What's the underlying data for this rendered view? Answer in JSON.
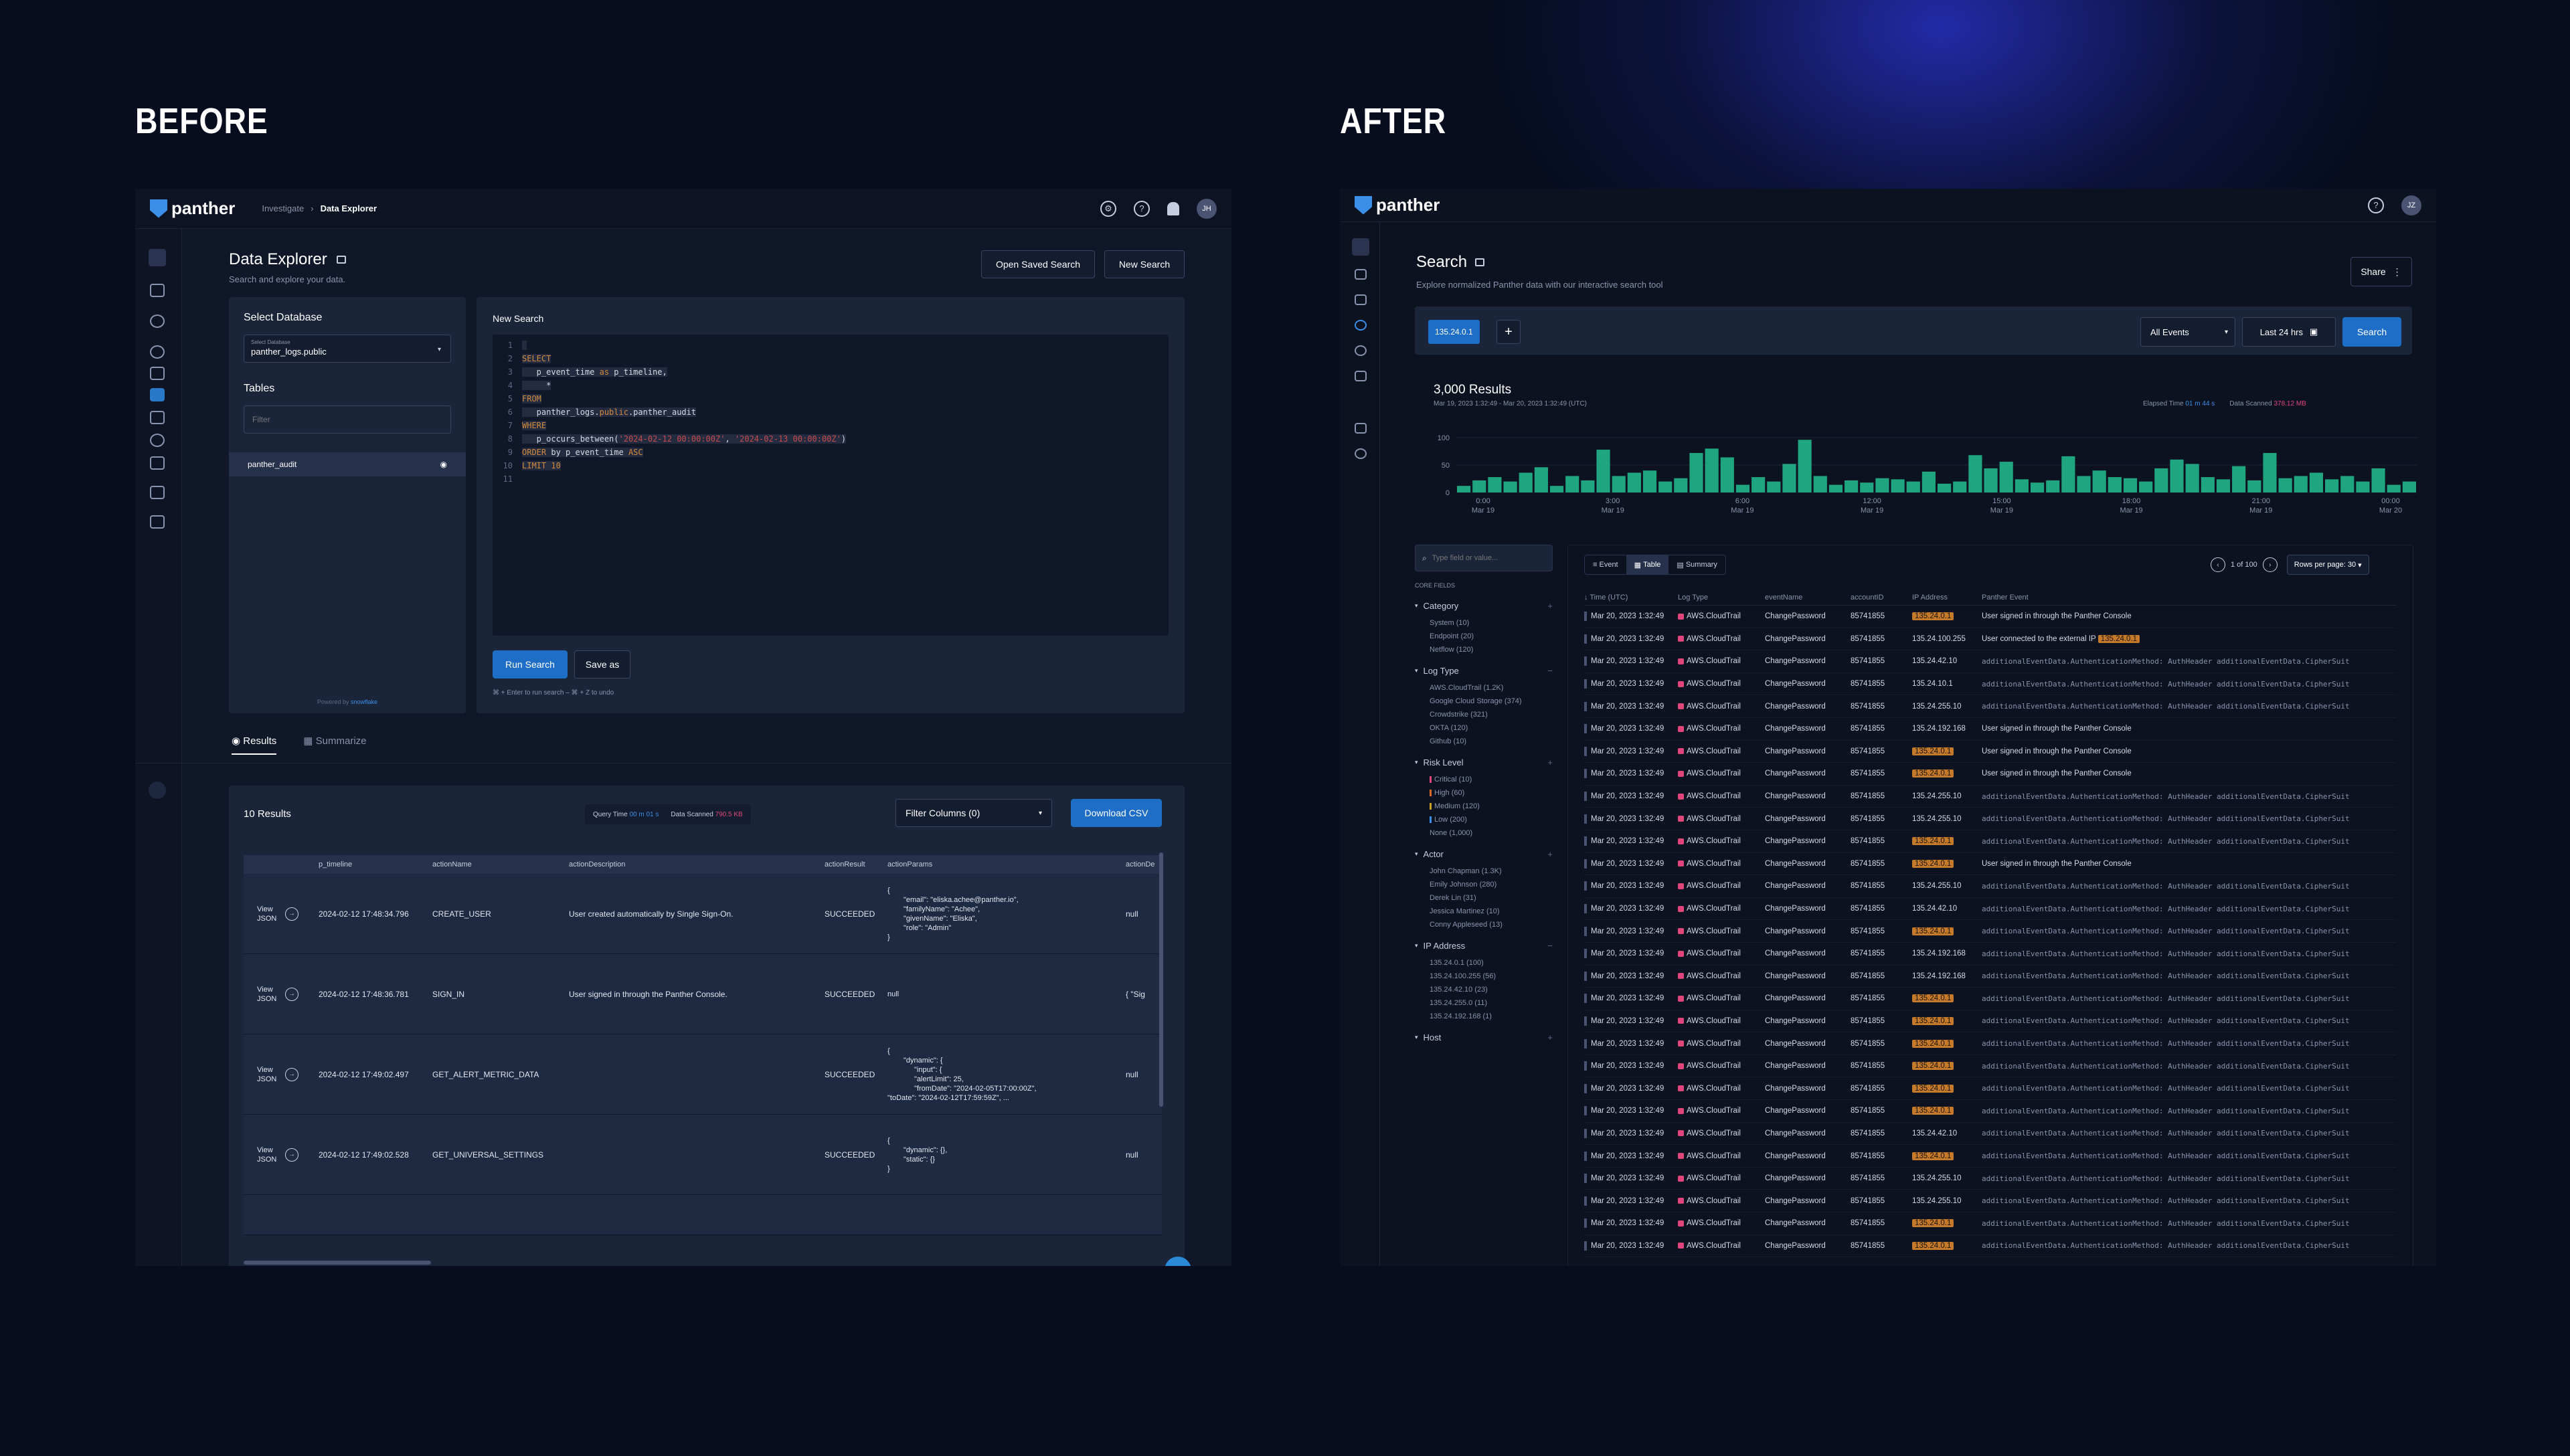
{
  "labels": {
    "before": "BEFORE",
    "after": "AFTER"
  },
  "before": {
    "brand": "panther",
    "breadcrumb": [
      "Investigate",
      "›",
      "Data Explorer"
    ],
    "avatar": "JH",
    "title": "Data Explorer",
    "subtitle": "Search and explore your data.",
    "open_saved": "Open Saved Search",
    "new_search": "New Search",
    "select_db_label": "Select Database",
    "db_field_label": "Select Database",
    "db_value": "panther_logs.public",
    "tables_label": "Tables",
    "filter_placeholder": "Filter",
    "table_item": "panther_audit",
    "powered_by": "Powered by",
    "snowflake": "snowflake",
    "editor_label": "New Search",
    "line_numbers": [
      "1",
      "2",
      "3",
      "4",
      "5",
      "6",
      "7",
      "8",
      "9",
      "10",
      "11"
    ],
    "run_search": "Run Search",
    "save_as": "Save as",
    "shortcut_hint": "⌘ + Enter to run search – ⌘ + Z to undo",
    "tab_results": "Results",
    "tab_summarize": "Summarize",
    "results_count": "10 Results",
    "query_time_label": "Query Time",
    "query_time_value": "00 m 01 s",
    "data_scanned_label": "Data Scanned",
    "data_scanned_value": "790.5 KB",
    "filter_columns": "Filter Columns (0)",
    "download_csv": "Download CSV",
    "columns": [
      "p_timeline",
      "actionName",
      "actionDescription",
      "actionResult",
      "actionParams",
      "actionDe"
    ],
    "view_json": "View JSON",
    "rows": [
      {
        "time": "2024-02-12 17:48:34.796",
        "name": "CREATE_USER",
        "desc": "User created automatically by Single Sign-On.",
        "result": "SUCCEEDED",
        "params": [
          "{",
          "\"email\": \"eliska.achee@panther.io\",",
          "\"familyName\": \"Achee\",",
          "\"givenName\": \"Eliska\",",
          "\"role\": \"Admin\"",
          "}"
        ],
        "de": "null"
      },
      {
        "time": "2024-02-12 17:48:36.781",
        "name": "SIGN_IN",
        "desc": "User signed in through the Panther Console.",
        "result": "SUCCEEDED",
        "params": [
          "null"
        ],
        "de": "{ \"Sig"
      },
      {
        "time": "2024-02-12 17:49:02.497",
        "name": "GET_ALERT_METRIC_DATA",
        "desc": "",
        "result": "SUCCEEDED",
        "params": [
          "{",
          "\"dynamic\": {",
          "\"input\": {",
          "\"alertLimit\": 25,",
          "\"fromDate\": \"2024-02-05T17:00:00Z\",",
          "\"toDate\": \"2024-02-12T17:59:59Z\", ..."
        ],
        "de": "null"
      },
      {
        "time": "2024-02-12 17:49:02.528",
        "name": "GET_UNIVERSAL_SETTINGS",
        "desc": "",
        "result": "SUCCEEDED",
        "params": [
          "{",
          "\"dynamic\": {},",
          "\"static\": {}",
          "}"
        ],
        "de": "null"
      }
    ]
  },
  "after": {
    "brand": "panther",
    "avatar": "JZ",
    "title": "Search",
    "subtitle": "Explore normalized Panther data with our interactive search tool",
    "share": "Share",
    "query_chip": "135.24.0.1",
    "all_events": "All Events",
    "time_range": "Last 24 hrs",
    "search_button": "Search",
    "results_title": "3,000 Results",
    "date_range": "Mar 19, 2023 1:32:49 - Mar 20, 2023 1:32:49 (UTC)",
    "elapsed_label": "Elapsed Time",
    "elapsed_value": "01 m 44 s",
    "scanned_label": "Data Scanned",
    "scanned_value": "378.12 MB",
    "y_ticks": [
      "100",
      "50",
      "0"
    ],
    "x_ticks": [
      {
        "t": "0:00",
        "d": "Mar 19"
      },
      {
        "t": "3:00",
        "d": "Mar 19"
      },
      {
        "t": "6:00",
        "d": "Mar 19"
      },
      {
        "t": "12:00",
        "d": "Mar 19"
      },
      {
        "t": "15:00",
        "d": "Mar 19"
      },
      {
        "t": "18:00",
        "d": "Mar 19"
      },
      {
        "t": "21:00",
        "d": "Mar 19"
      },
      {
        "t": "00:00",
        "d": "Mar 20"
      }
    ],
    "field_search_placeholder": "Type field or value...",
    "core_fields": "CORE FIELDS",
    "facets": [
      {
        "name": "Category",
        "items": [
          "System (10)",
          "Endpoint (20)",
          "Netflow (120)"
        ]
      },
      {
        "name": "Log Type",
        "items": [
          "AWS.CloudTrail (1.2K)",
          "Google Cloud Storage (374)",
          "Crowdstrike (321)",
          "OKTA (120)",
          "Github (10)"
        ]
      },
      {
        "name": "Risk Level",
        "items": [
          "Critical (10)",
          "High (60)",
          "Medium (120)",
          "Low (200)",
          "None (1,000)"
        ]
      },
      {
        "name": "Actor",
        "items": [
          "John Chapman (1.3K)",
          "Emily Johnson (280)",
          "Derek Lin (31)",
          "Jessica Martinez (10)",
          "Conny Appleseed (13)"
        ]
      },
      {
        "name": "IP Address",
        "items": [
          "135.24.0.1 (100)",
          "135.24.100.255 (56)",
          "135.24.42.10 (23)",
          "135.24.255.0 (11)",
          "135.24.192.168 (1)"
        ]
      },
      {
        "name": "Host",
        "items": []
      }
    ],
    "view_tabs": [
      "Event",
      "Table",
      "Summary"
    ],
    "pager": "1 of 100",
    "rows_per_page": "Rows per page: 30",
    "table_cols": [
      "Time (UTC)",
      "Log Type",
      "eventName",
      "accountID",
      "IP Address",
      "Panther Event"
    ],
    "row_time": "Mar 20, 2023 1:32:49",
    "row_logtype": "AWS.CloudTrail",
    "row_event": "ChangePassword",
    "row_account": "85741855",
    "events": [
      {
        "ip": "135.24.0.1",
        "hl": true,
        "text": "User signed in through the Panther Console",
        "mono": false
      },
      {
        "ip": "135.24.100.255",
        "hl": false,
        "text": "User connected to the external IP",
        "mono": false,
        "ip2": "135.24.0.1"
      },
      {
        "ip": "135.24.42.10",
        "hl": false,
        "mono": true
      },
      {
        "ip": "135.24.10.1",
        "hl": false,
        "mono": true
      },
      {
        "ip": "135.24.255.10",
        "hl": false,
        "mono": true
      },
      {
        "ip": "135.24.192.168",
        "hl": false,
        "text": "User signed in through the Panther Console",
        "mono": false
      },
      {
        "ip": "135.24.0.1",
        "hl": true,
        "text": "User signed in through the Panther Console",
        "mono": false
      },
      {
        "ip": "135.24.0.1",
        "hl": true,
        "text": "User signed in through the Panther Console",
        "mono": false
      },
      {
        "ip": "135.24.255.10",
        "hl": false,
        "mono": true
      },
      {
        "ip": "135.24.255.10",
        "hl": false,
        "mono": true
      },
      {
        "ip": "135.24.0.1",
        "hl": true,
        "mono": true
      },
      {
        "ip": "135.24.0.1",
        "hl": true,
        "text": "User signed in through the Panther Console",
        "mono": false
      },
      {
        "ip": "135.24.255.10",
        "hl": false,
        "mono": true
      },
      {
        "ip": "135.24.42.10",
        "hl": false,
        "mono": true
      },
      {
        "ip": "135.24.0.1",
        "hl": true,
        "mono": true
      },
      {
        "ip": "135.24.192.168",
        "hl": false,
        "mono": true
      },
      {
        "ip": "135.24.192.168",
        "hl": false,
        "mono": true
      },
      {
        "ip": "135.24.0.1",
        "hl": true,
        "mono": true
      },
      {
        "ip": "135.24.0.1",
        "hl": true,
        "mono": true
      },
      {
        "ip": "135.24.0.1",
        "hl": true,
        "mono": true
      },
      {
        "ip": "135.24.0.1",
        "hl": true,
        "mono": true
      },
      {
        "ip": "135.24.0.1",
        "hl": true,
        "mono": true
      },
      {
        "ip": "135.24.0.1",
        "hl": true,
        "mono": true
      },
      {
        "ip": "135.24.42.10",
        "hl": false,
        "mono": true
      },
      {
        "ip": "135.24.0.1",
        "hl": true,
        "mono": true
      },
      {
        "ip": "135.24.255.10",
        "hl": false,
        "mono": true
      },
      {
        "ip": "135.24.255.10",
        "hl": false,
        "mono": true
      },
      {
        "ip": "135.24.0.1",
        "hl": true,
        "mono": true
      },
      {
        "ip": "135.24.0.1",
        "hl": true,
        "mono": true
      }
    ],
    "mono_text": "additionalEventData.AuthenticationMethod: AuthHeader  additionalEventData.CipherSuit",
    "colors": {
      "accent": "#1e6ec8",
      "bar": "#1fa57f",
      "ip_highlight": "#c47a2a",
      "logtype_dot": "#e0457b"
    }
  },
  "chart_data": {
    "type": "bar",
    "title": "",
    "xlabel": "",
    "ylabel": "",
    "ylim": [
      0,
      100
    ],
    "values": [
      12,
      22,
      28,
      20,
      36,
      46,
      12,
      30,
      22,
      78,
      30,
      36,
      40,
      20,
      26,
      72,
      80,
      64,
      14,
      28,
      20,
      52,
      96,
      30,
      14,
      22,
      18,
      26,
      24,
      20,
      38,
      16,
      20,
      68,
      44,
      56,
      24,
      18,
      22,
      66,
      30,
      40,
      28,
      26,
      20,
      44,
      60,
      52,
      28,
      24,
      48,
      22,
      72,
      26,
      30,
      36,
      24,
      30,
      20,
      44,
      14,
      20
    ]
  }
}
